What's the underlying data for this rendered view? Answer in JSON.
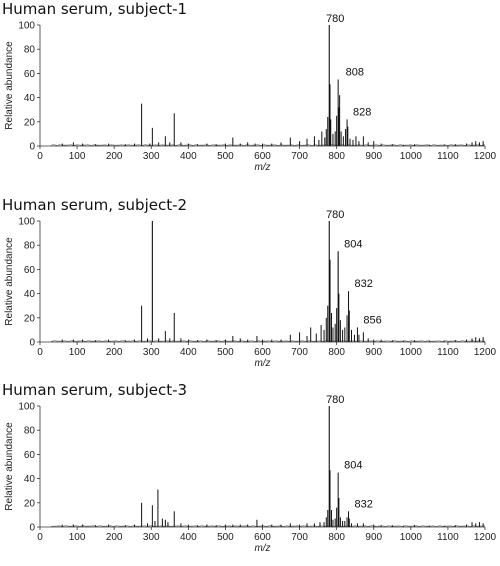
{
  "chart_data": [
    {
      "type": "line",
      "title": "Human serum, subject-1",
      "xlabel": "m/z",
      "ylabel": "Relative abundance",
      "xlim": [
        0,
        1200
      ],
      "ylim": [
        0,
        100
      ],
      "x_ticks": [
        0,
        100,
        200,
        300,
        400,
        500,
        600,
        700,
        800,
        900,
        1000,
        1100,
        1200
      ],
      "y_ticks": [
        0,
        20,
        40,
        60,
        80,
        100
      ],
      "peaks": [
        {
          "x": 60,
          "y": 2
        },
        {
          "x": 90,
          "y": 3
        },
        {
          "x": 115,
          "y": 2
        },
        {
          "x": 150,
          "y": 1.5
        },
        {
          "x": 185,
          "y": 2
        },
        {
          "x": 230,
          "y": 1.5
        },
        {
          "x": 255,
          "y": 2
        },
        {
          "x": 274,
          "y": 35
        },
        {
          "x": 296,
          "y": 2
        },
        {
          "x": 303,
          "y": 15
        },
        {
          "x": 320,
          "y": 3
        },
        {
          "x": 338,
          "y": 8
        },
        {
          "x": 350,
          "y": 3
        },
        {
          "x": 362,
          "y": 27
        },
        {
          "x": 380,
          "y": 3
        },
        {
          "x": 400,
          "y": 2
        },
        {
          "x": 425,
          "y": 1.5
        },
        {
          "x": 450,
          "y": 2
        },
        {
          "x": 475,
          "y": 1.5
        },
        {
          "x": 500,
          "y": 2
        },
        {
          "x": 520,
          "y": 7
        },
        {
          "x": 540,
          "y": 2
        },
        {
          "x": 560,
          "y": 3
        },
        {
          "x": 580,
          "y": 2
        },
        {
          "x": 600,
          "y": 2
        },
        {
          "x": 625,
          "y": 2
        },
        {
          "x": 650,
          "y": 3
        },
        {
          "x": 675,
          "y": 7
        },
        {
          "x": 700,
          "y": 4
        },
        {
          "x": 720,
          "y": 6
        },
        {
          "x": 740,
          "y": 8
        },
        {
          "x": 752,
          "y": 5
        },
        {
          "x": 760,
          "y": 12
        },
        {
          "x": 768,
          "y": 7
        },
        {
          "x": 772,
          "y": 14
        },
        {
          "x": 776,
          "y": 24
        },
        {
          "x": 780,
          "y": 100
        },
        {
          "x": 782,
          "y": 51
        },
        {
          "x": 784,
          "y": 22
        },
        {
          "x": 790,
          "y": 10
        },
        {
          "x": 796,
          "y": 12
        },
        {
          "x": 800,
          "y": 25
        },
        {
          "x": 804,
          "y": 55
        },
        {
          "x": 806,
          "y": 32
        },
        {
          "x": 808,
          "y": 42
        },
        {
          "x": 812,
          "y": 12
        },
        {
          "x": 818,
          "y": 8
        },
        {
          "x": 824,
          "y": 14
        },
        {
          "x": 828,
          "y": 22
        },
        {
          "x": 830,
          "y": 16
        },
        {
          "x": 836,
          "y": 6
        },
        {
          "x": 844,
          "y": 5
        },
        {
          "x": 852,
          "y": 8
        },
        {
          "x": 860,
          "y": 4
        },
        {
          "x": 872,
          "y": 8
        },
        {
          "x": 885,
          "y": 3
        },
        {
          "x": 900,
          "y": 4
        },
        {
          "x": 920,
          "y": 2
        },
        {
          "x": 950,
          "y": 1.5
        },
        {
          "x": 980,
          "y": 1
        },
        {
          "x": 1010,
          "y": 1.5
        },
        {
          "x": 1050,
          "y": 1
        },
        {
          "x": 1090,
          "y": 1
        },
        {
          "x": 1120,
          "y": 1.5
        },
        {
          "x": 1150,
          "y": 2
        },
        {
          "x": 1165,
          "y": 3
        },
        {
          "x": 1175,
          "y": 4
        },
        {
          "x": 1185,
          "y": 3
        },
        {
          "x": 1195,
          "y": 4
        }
      ],
      "annotations": [
        {
          "x": 780,
          "y": 100,
          "text": "780"
        },
        {
          "x": 808,
          "y": 55,
          "text": "808"
        },
        {
          "x": 828,
          "y": 22,
          "text": "828"
        }
      ]
    },
    {
      "type": "line",
      "title": "Human serum, subject-2",
      "xlabel": "m/z",
      "ylabel": "Relative abundance",
      "xlim": [
        0,
        1200
      ],
      "ylim": [
        0,
        100
      ],
      "x_ticks": [
        0,
        100,
        200,
        300,
        400,
        500,
        600,
        700,
        800,
        900,
        1000,
        1100,
        1200
      ],
      "y_ticks": [
        0,
        20,
        40,
        60,
        80,
        100
      ],
      "peaks": [
        {
          "x": 60,
          "y": 2
        },
        {
          "x": 90,
          "y": 2
        },
        {
          "x": 115,
          "y": 2
        },
        {
          "x": 150,
          "y": 1.5
        },
        {
          "x": 185,
          "y": 2
        },
        {
          "x": 230,
          "y": 1.5
        },
        {
          "x": 255,
          "y": 2
        },
        {
          "x": 274,
          "y": 30
        },
        {
          "x": 290,
          "y": 3
        },
        {
          "x": 303,
          "y": 100
        },
        {
          "x": 320,
          "y": 3
        },
        {
          "x": 338,
          "y": 9
        },
        {
          "x": 350,
          "y": 3
        },
        {
          "x": 362,
          "y": 24
        },
        {
          "x": 380,
          "y": 3
        },
        {
          "x": 400,
          "y": 2
        },
        {
          "x": 425,
          "y": 1.5
        },
        {
          "x": 450,
          "y": 2
        },
        {
          "x": 475,
          "y": 1.5
        },
        {
          "x": 500,
          "y": 2
        },
        {
          "x": 520,
          "y": 5
        },
        {
          "x": 540,
          "y": 3
        },
        {
          "x": 560,
          "y": 2
        },
        {
          "x": 585,
          "y": 5
        },
        {
          "x": 600,
          "y": 2
        },
        {
          "x": 625,
          "y": 2
        },
        {
          "x": 650,
          "y": 2
        },
        {
          "x": 675,
          "y": 6
        },
        {
          "x": 700,
          "y": 8
        },
        {
          "x": 720,
          "y": 5
        },
        {
          "x": 730,
          "y": 12
        },
        {
          "x": 745,
          "y": 7
        },
        {
          "x": 758,
          "y": 14
        },
        {
          "x": 766,
          "y": 10
        },
        {
          "x": 772,
          "y": 20
        },
        {
          "x": 776,
          "y": 30
        },
        {
          "x": 780,
          "y": 100
        },
        {
          "x": 782,
          "y": 68
        },
        {
          "x": 786,
          "y": 24
        },
        {
          "x": 790,
          "y": 12
        },
        {
          "x": 796,
          "y": 15
        },
        {
          "x": 800,
          "y": 28
        },
        {
          "x": 804,
          "y": 75
        },
        {
          "x": 806,
          "y": 40
        },
        {
          "x": 810,
          "y": 18
        },
        {
          "x": 816,
          "y": 10
        },
        {
          "x": 822,
          "y": 12
        },
        {
          "x": 828,
          "y": 22
        },
        {
          "x": 832,
          "y": 42
        },
        {
          "x": 834,
          "y": 26
        },
        {
          "x": 840,
          "y": 10
        },
        {
          "x": 848,
          "y": 6
        },
        {
          "x": 856,
          "y": 12
        },
        {
          "x": 860,
          "y": 6
        },
        {
          "x": 872,
          "y": 8
        },
        {
          "x": 885,
          "y": 3
        },
        {
          "x": 900,
          "y": 2
        },
        {
          "x": 920,
          "y": 2
        },
        {
          "x": 950,
          "y": 1.5
        },
        {
          "x": 980,
          "y": 1
        },
        {
          "x": 1010,
          "y": 1.5
        },
        {
          "x": 1050,
          "y": 1
        },
        {
          "x": 1090,
          "y": 1
        },
        {
          "x": 1120,
          "y": 1.5
        },
        {
          "x": 1150,
          "y": 2
        },
        {
          "x": 1165,
          "y": 3
        },
        {
          "x": 1175,
          "y": 4
        },
        {
          "x": 1185,
          "y": 3
        },
        {
          "x": 1195,
          "y": 4
        }
      ],
      "annotations": [
        {
          "x": 780,
          "y": 100,
          "text": "780"
        },
        {
          "x": 804,
          "y": 75,
          "text": "804"
        },
        {
          "x": 832,
          "y": 42,
          "text": "832"
        },
        {
          "x": 856,
          "y": 12,
          "text": "856"
        }
      ]
    },
    {
      "type": "line",
      "title": "Human serum, subject-3",
      "xlabel": "m/z",
      "ylabel": "Relative abundance",
      "xlim": [
        0,
        1200
      ],
      "ylim": [
        0,
        100
      ],
      "x_ticks": [
        0,
        100,
        200,
        300,
        400,
        500,
        600,
        700,
        800,
        900,
        1000,
        1100,
        1200
      ],
      "y_ticks": [
        0,
        20,
        40,
        60,
        80,
        100
      ],
      "peaks": [
        {
          "x": 60,
          "y": 2
        },
        {
          "x": 90,
          "y": 2
        },
        {
          "x": 115,
          "y": 2
        },
        {
          "x": 150,
          "y": 1.5
        },
        {
          "x": 185,
          "y": 2
        },
        {
          "x": 230,
          "y": 1.5
        },
        {
          "x": 255,
          "y": 2
        },
        {
          "x": 274,
          "y": 20
        },
        {
          "x": 290,
          "y": 3
        },
        {
          "x": 303,
          "y": 18
        },
        {
          "x": 310,
          "y": 5
        },
        {
          "x": 318,
          "y": 31
        },
        {
          "x": 330,
          "y": 7
        },
        {
          "x": 338,
          "y": 6
        },
        {
          "x": 345,
          "y": 4
        },
        {
          "x": 362,
          "y": 13
        },
        {
          "x": 380,
          "y": 3
        },
        {
          "x": 400,
          "y": 2
        },
        {
          "x": 425,
          "y": 1.5
        },
        {
          "x": 450,
          "y": 2
        },
        {
          "x": 475,
          "y": 1.5
        },
        {
          "x": 500,
          "y": 2
        },
        {
          "x": 520,
          "y": 2
        },
        {
          "x": 540,
          "y": 2
        },
        {
          "x": 560,
          "y": 2
        },
        {
          "x": 585,
          "y": 6
        },
        {
          "x": 600,
          "y": 2
        },
        {
          "x": 625,
          "y": 2
        },
        {
          "x": 650,
          "y": 2
        },
        {
          "x": 675,
          "y": 3
        },
        {
          "x": 700,
          "y": 2
        },
        {
          "x": 720,
          "y": 3
        },
        {
          "x": 740,
          "y": 3
        },
        {
          "x": 755,
          "y": 4
        },
        {
          "x": 766,
          "y": 4
        },
        {
          "x": 772,
          "y": 8
        },
        {
          "x": 776,
          "y": 14
        },
        {
          "x": 780,
          "y": 100
        },
        {
          "x": 782,
          "y": 47
        },
        {
          "x": 786,
          "y": 14
        },
        {
          "x": 790,
          "y": 6
        },
        {
          "x": 796,
          "y": 7
        },
        {
          "x": 800,
          "y": 16
        },
        {
          "x": 804,
          "y": 45
        },
        {
          "x": 806,
          "y": 24
        },
        {
          "x": 810,
          "y": 8
        },
        {
          "x": 816,
          "y": 5
        },
        {
          "x": 822,
          "y": 5
        },
        {
          "x": 828,
          "y": 8
        },
        {
          "x": 832,
          "y": 13
        },
        {
          "x": 834,
          "y": 7
        },
        {
          "x": 840,
          "y": 3
        },
        {
          "x": 856,
          "y": 3
        },
        {
          "x": 872,
          "y": 3
        },
        {
          "x": 900,
          "y": 2
        },
        {
          "x": 920,
          "y": 1.5
        },
        {
          "x": 950,
          "y": 1.5
        },
        {
          "x": 980,
          "y": 1
        },
        {
          "x": 1010,
          "y": 1.5
        },
        {
          "x": 1050,
          "y": 1
        },
        {
          "x": 1090,
          "y": 1
        },
        {
          "x": 1120,
          "y": 1.5
        },
        {
          "x": 1150,
          "y": 2
        },
        {
          "x": 1165,
          "y": 4
        },
        {
          "x": 1175,
          "y": 3
        },
        {
          "x": 1185,
          "y": 4
        },
        {
          "x": 1195,
          "y": 3
        }
      ],
      "annotations": [
        {
          "x": 780,
          "y": 100,
          "text": "780"
        },
        {
          "x": 804,
          "y": 45,
          "text": "804"
        },
        {
          "x": 832,
          "y": 13,
          "text": "832"
        }
      ]
    }
  ]
}
